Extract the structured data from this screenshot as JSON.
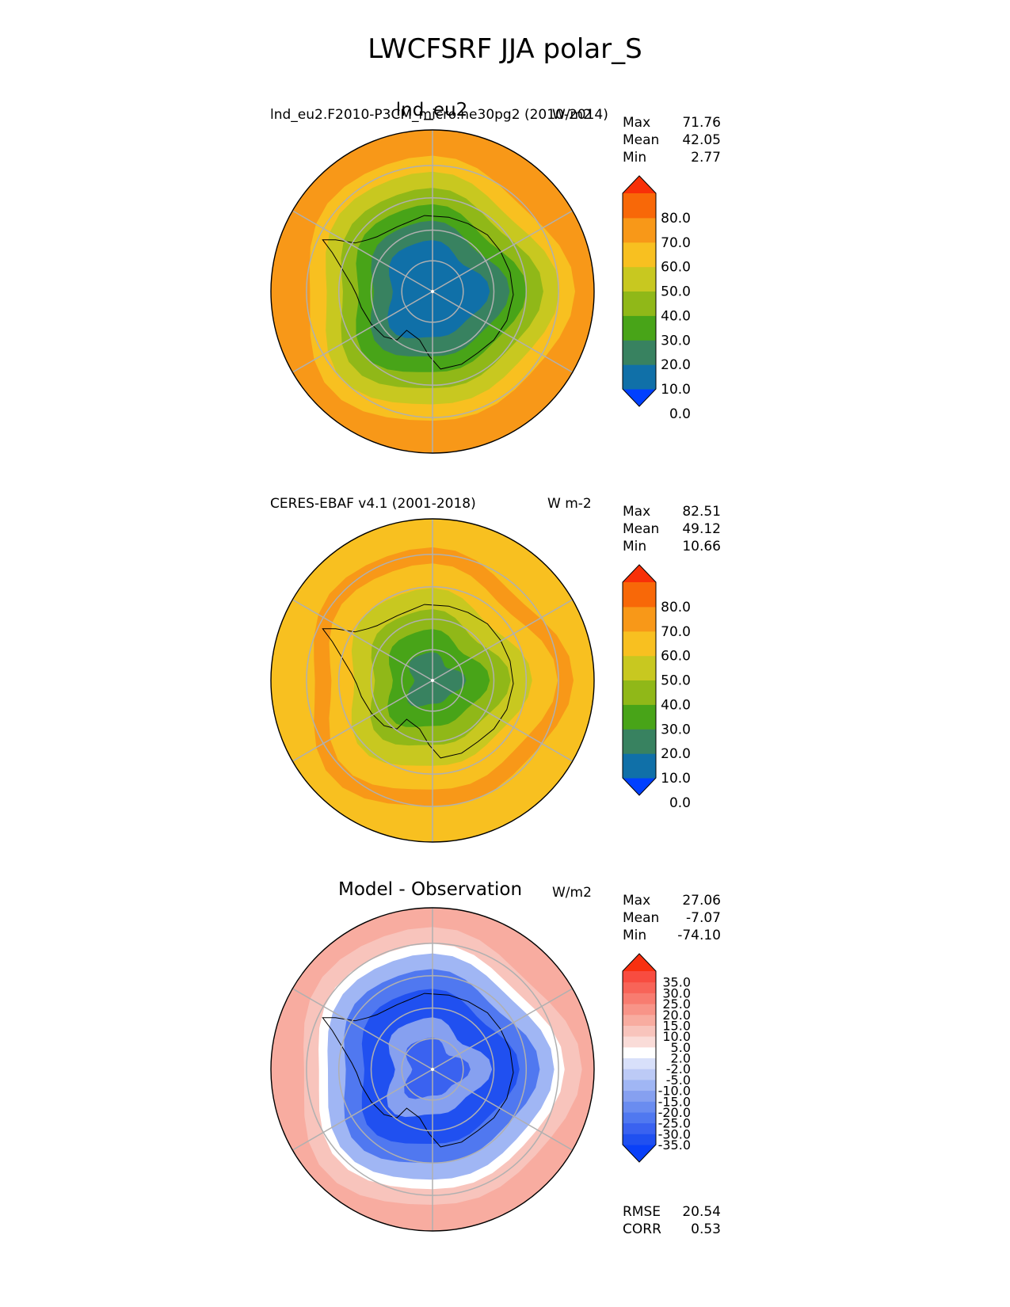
{
  "figure": {
    "suptitle": "LWCFSRF JJA polar_S"
  },
  "chart_data": [
    {
      "type": "heatmap",
      "projection": "south-polar-stereographic",
      "title": "lnd_eu2",
      "case_label": "lnd_eu2.F2010-P3CM_micro.ne30pg2 (2010-2014)",
      "units": "W/m2",
      "stats": {
        "max": "71.76",
        "mean": "42.05",
        "min": "2.77"
      },
      "colorbar": {
        "ticks": [
          "80.0",
          "70.0",
          "60.0",
          "50.0",
          "40.0",
          "30.0",
          "20.0",
          "10.0",
          "0.0"
        ],
        "colors": [
          "#0040ff",
          "#1070a8",
          "#388260",
          "#48a418",
          "#90b818",
          "#c8c820",
          "#f8c020",
          "#f89818",
          "#f86808",
          "#f83008"
        ]
      },
      "field": {
        "ice": 0,
        "mid": 0.3,
        "outer": 0.52
      }
    },
    {
      "type": "heatmap",
      "projection": "south-polar-stereographic",
      "title": "",
      "case_label": "CERES-EBAF v4.1 (2001-2018)",
      "units": "W m-2",
      "stats": {
        "max": "82.51",
        "mean": "49.12",
        "min": "10.66"
      },
      "colorbar": {
        "ticks": [
          "80.0",
          "70.0",
          "60.0",
          "50.0",
          "40.0",
          "30.0",
          "20.0",
          "10.0",
          "0.0"
        ],
        "colors": [
          "#0040ff",
          "#1070a8",
          "#388260",
          "#48a418",
          "#90b818",
          "#c8c820",
          "#f8c020",
          "#f89818",
          "#f86808",
          "#f83008"
        ]
      },
      "field": {
        "ice": 1,
        "mid": 0.3,
        "outer": 0.52
      }
    },
    {
      "type": "heatmap",
      "projection": "south-polar-stereographic",
      "title": "Model - Observation",
      "case_label": "",
      "units": "W/m2",
      "stats": {
        "max": "27.06",
        "mean": "-7.07",
        "min": "-74.10"
      },
      "metrics": {
        "rmse_label": "RMSE",
        "rmse": "20.54",
        "corr_label": "CORR",
        "corr": "0.53"
      },
      "colorbar": {
        "ticks": [
          "35.0",
          "30.0",
          "25.0",
          "20.0",
          "15.0",
          "10.0",
          "5.0",
          "2.0",
          "-2.0",
          "-5.0",
          "-10.0",
          "-15.0",
          "-20.0",
          "-25.0",
          "-30.0",
          "-35.0"
        ],
        "colors": [
          "#0a40f8",
          "#2050f0",
          "#3a62f0",
          "#5078f0",
          "#6a8cf0",
          "#86a0f0",
          "#a0b6f4",
          "#bccaf6",
          "#d8e0fa",
          "#ffffff",
          "#fadcd8",
          "#f8c4bc",
          "#f8aca0",
          "#f89488",
          "#f87c70",
          "#f86458",
          "#f84c40",
          "#f83010"
        ]
      },
      "field": {
        "ice": 2,
        "mid": 0.3,
        "outer": 0.52
      }
    }
  ],
  "labels": {
    "max": "Max",
    "mean": "Mean",
    "min": "Min"
  }
}
